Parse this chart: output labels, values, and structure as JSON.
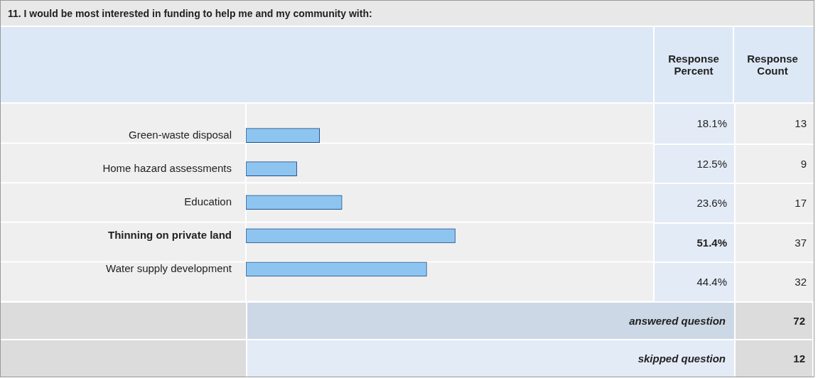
{
  "chart_data": {
    "type": "bar",
    "orientation": "horizontal",
    "title": "11. I would be most interested in funding to help me and my community with:",
    "categories": [
      "Green-waste disposal",
      "Home hazard assessments",
      "Education",
      "Thinning on private land",
      "Water supply development"
    ],
    "values": [
      18.1,
      12.5,
      23.6,
      51.4,
      44.4
    ],
    "color": "#8ec5f0",
    "xlim": [
      0,
      100
    ],
    "tick_labels": "y",
    "value_labels": [
      "18.1%",
      "12.5%",
      "23.6%",
      "51.4%",
      "44.4%"
    ],
    "annotations": [
      "Response Percent",
      "Response Count",
      "13",
      "9",
      "17",
      "37",
      "32",
      "answered question",
      "72",
      "skipped question",
      "12"
    ]
  }
}
